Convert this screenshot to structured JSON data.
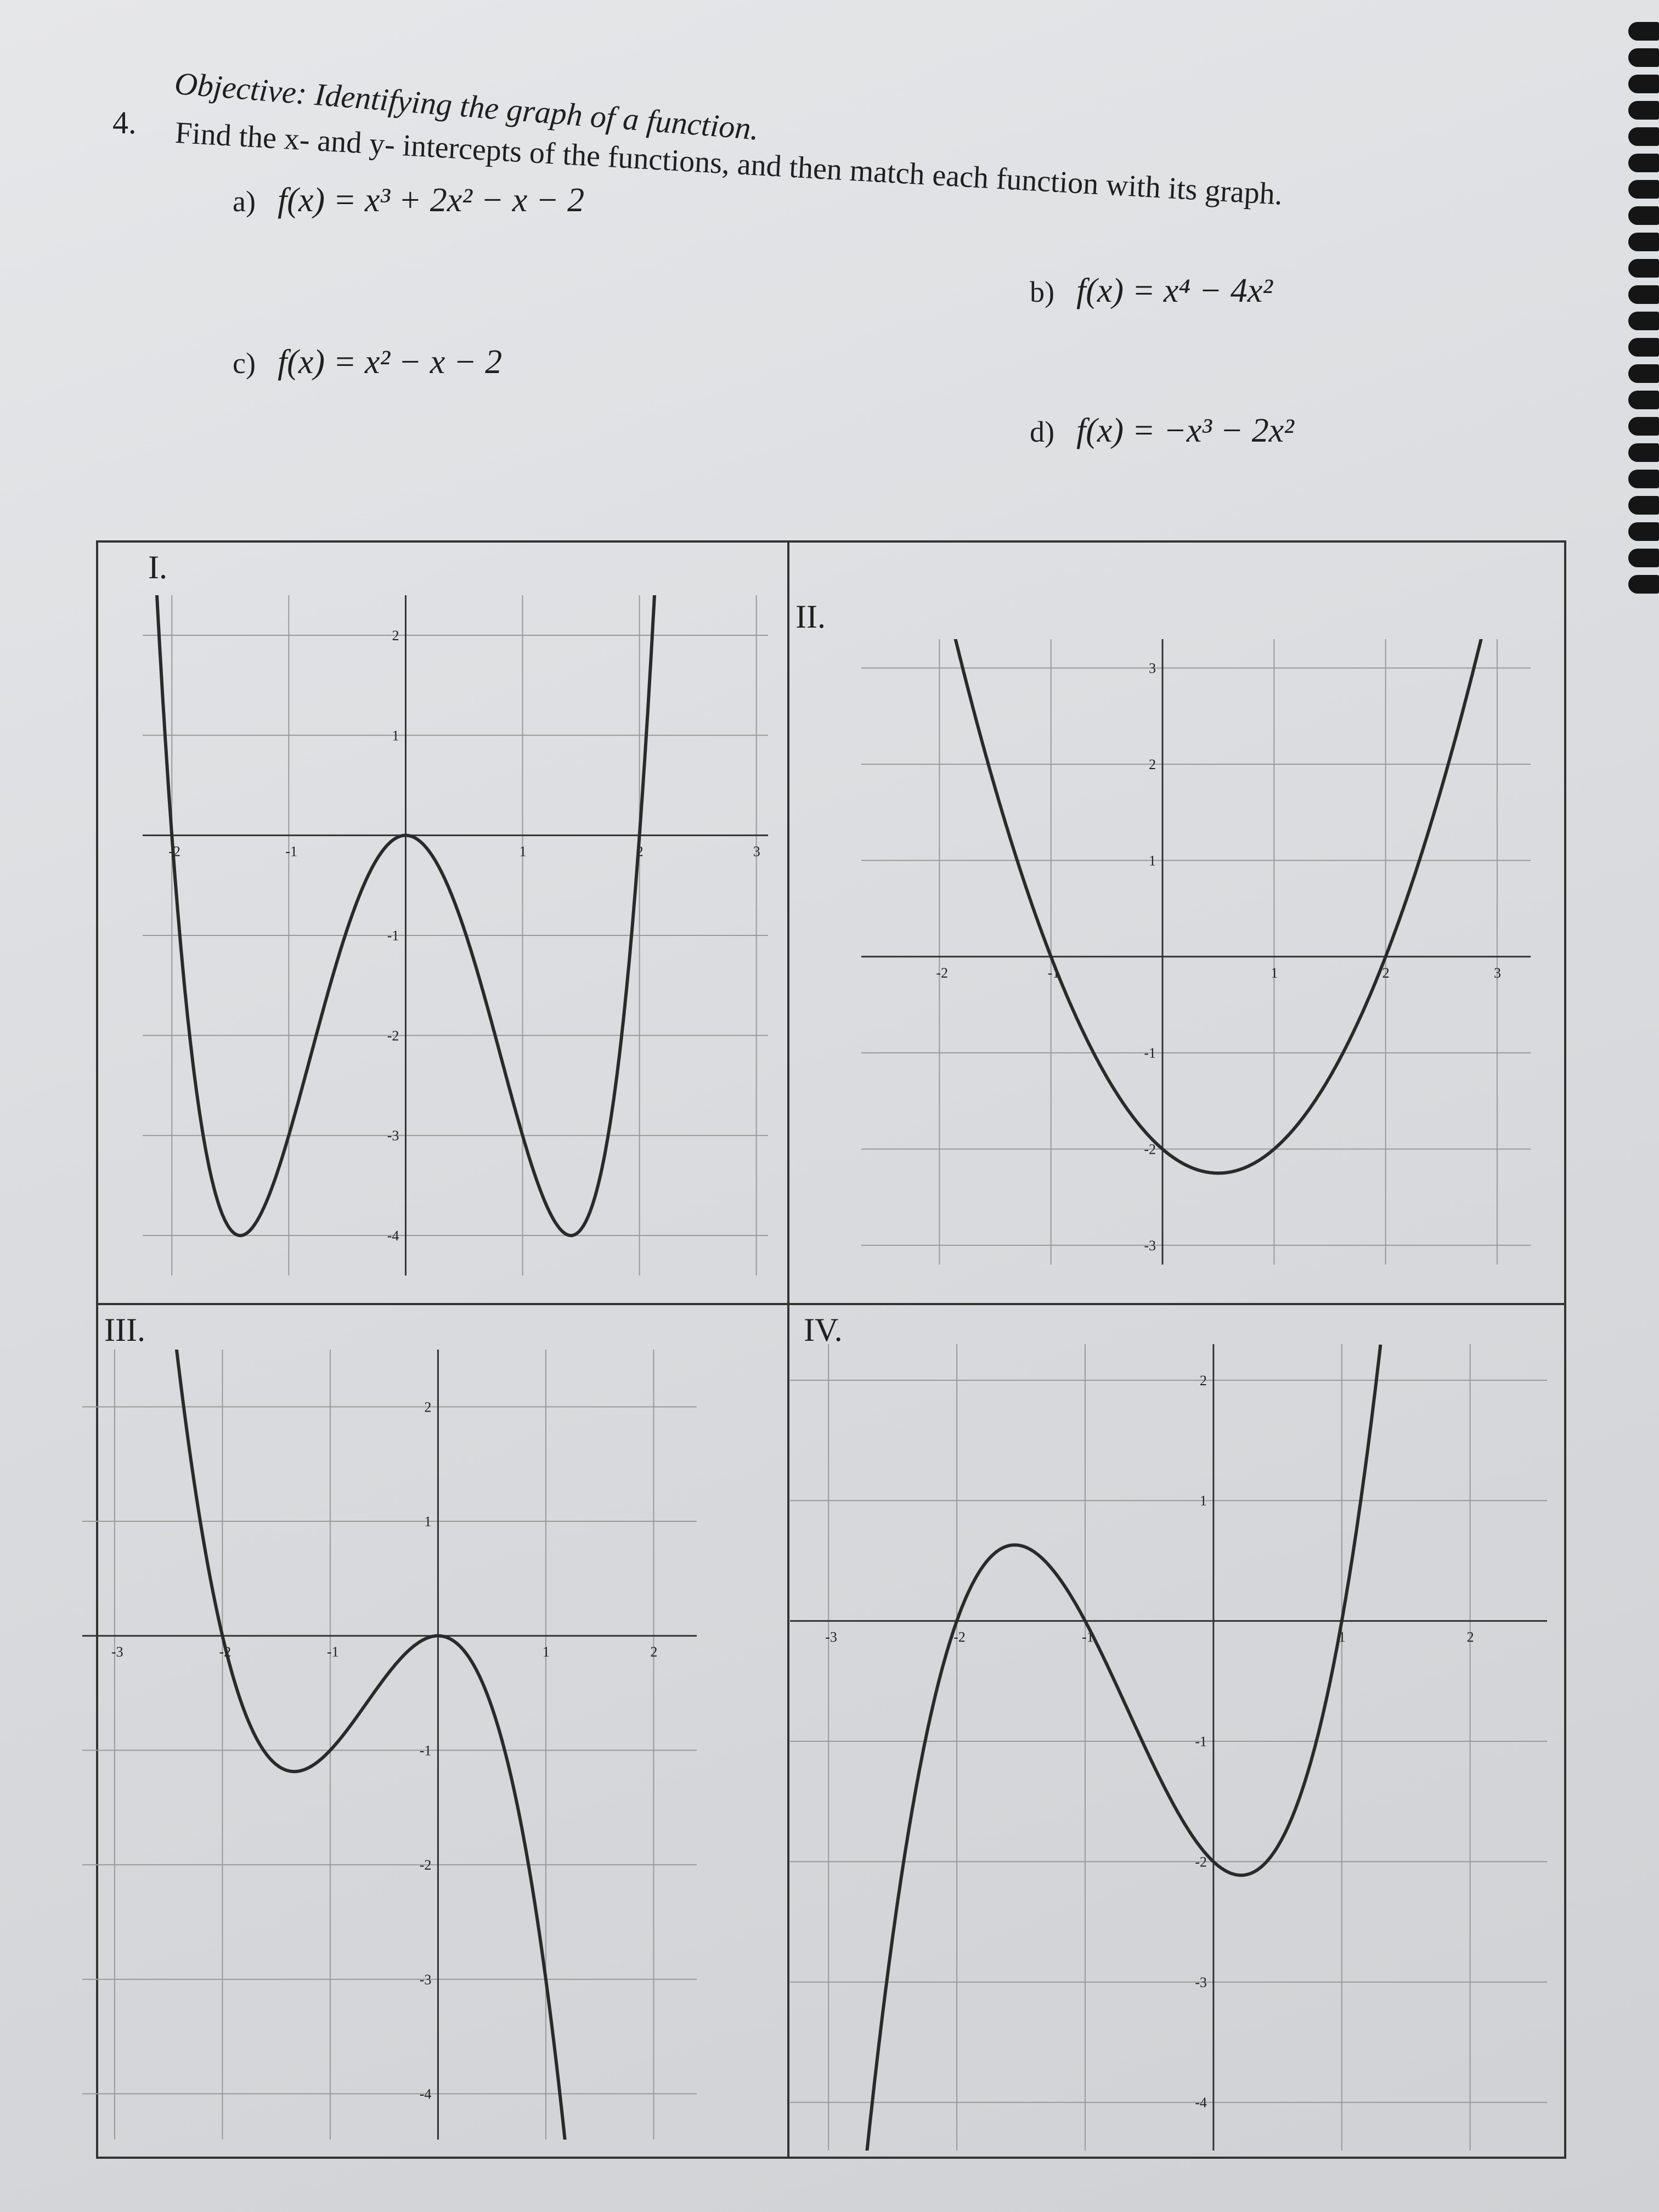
{
  "header": {
    "objective": "Objective: Identifying the graph of a function.",
    "problem_number": "4.",
    "instruction": "Find the x- and y- intercepts of the functions, and then match each function with its graph."
  },
  "functions": [
    {
      "label": "a)",
      "expr": "f(x) = x³ + 2x² − x − 2"
    },
    {
      "label": "b)",
      "expr": "f(x) = x⁴ − 4x²"
    },
    {
      "label": "c)",
      "expr": "f(x) = x² − x − 2"
    },
    {
      "label": "d)",
      "expr": "f(x) = −x³ − 2x²"
    }
  ],
  "graphs": [
    {
      "label": "I.",
      "curve": "x^4-4x^2",
      "xlim": [
        -2.25,
        3.1
      ],
      "ylim": [
        -4.4,
        2.4
      ],
      "xticks": [
        -2,
        -1,
        1,
        2,
        3
      ],
      "yticks": [
        2,
        1,
        -1,
        -2,
        -3,
        -4
      ]
    },
    {
      "label": "II.",
      "curve": "x^2-x-2",
      "xlim": [
        -2.7,
        3.3
      ],
      "ylim": [
        -3.2,
        3.3
      ],
      "xticks": [
        -2,
        -1,
        1,
        2,
        3
      ],
      "yticks": [
        3,
        2,
        1,
        -1,
        -2,
        -3
      ]
    },
    {
      "label": "III.",
      "curve": "-x^3-2x^2",
      "xlim": [
        -3.3,
        2.4
      ],
      "ylim": [
        -4.4,
        2.5
      ],
      "xticks": [
        -3,
        -2,
        -1,
        1,
        2
      ],
      "yticks": [
        2,
        1,
        -1,
        -2,
        -3,
        -4
      ]
    },
    {
      "label": "IV.",
      "curve": "x^3+2x^2-x-2",
      "xlim": [
        -3.3,
        2.6
      ],
      "ylim": [
        -4.4,
        2.3
      ],
      "xticks": [
        -3,
        -2,
        -1,
        1,
        2
      ],
      "yticks": [
        2,
        1,
        -1,
        -2,
        -3,
        -4
      ]
    }
  ],
  "colors": {
    "paper": "#dcdee1",
    "ink": "#1f1f1f",
    "grid": "#9a9a9a"
  }
}
